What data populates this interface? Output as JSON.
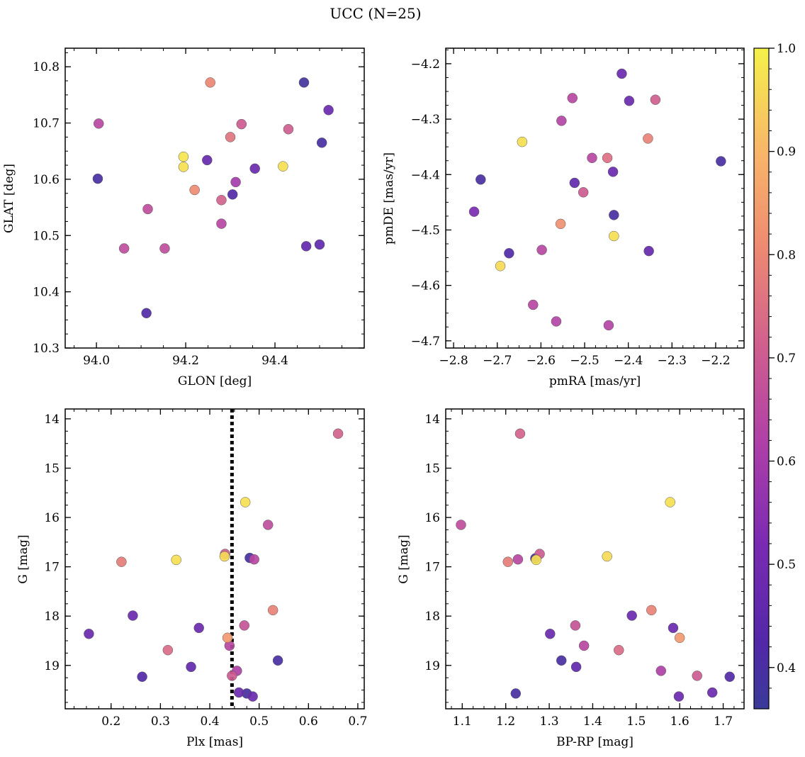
{
  "title": "UCC (N=25)",
  "colorbar": {
    "min": 0.36,
    "max": 1.0,
    "ticks": [
      0.4,
      0.5,
      0.6,
      0.7,
      0.8,
      0.9,
      1.0
    ],
    "tick_labels": [
      "0.4",
      "0.5",
      "0.6",
      "0.7",
      "0.8",
      "0.9",
      "1.0"
    ],
    "colormap": "plasma",
    "colors": [
      "#3a3a98",
      "#6a2cb0",
      "#a23db8",
      "#d05f8e",
      "#ee8a72",
      "#f9b868",
      "#f4f24a"
    ]
  },
  "chart_data": [
    {
      "id": "glon-glat",
      "type": "scatter",
      "title": "",
      "xlabel": "GLON [deg]",
      "ylabel": "GLAT [deg]",
      "xlim": [
        93.93,
        94.6
      ],
      "ylim": [
        10.3,
        10.833
      ],
      "xticks": [
        94.0,
        94.2,
        94.4
      ],
      "xtick_labels": [
        "94.0",
        "94.2",
        "94.4"
      ],
      "yticks": [
        10.3,
        10.4,
        10.5,
        10.6,
        10.7,
        10.8
      ],
      "ytick_labels": [
        "10.3",
        "10.4",
        "10.5",
        "10.6",
        "10.7",
        "10.8"
      ],
      "points": [
        {
          "x": 94.255,
          "y": 10.772,
          "p": 0.8
        },
        {
          "x": 94.465,
          "y": 10.772,
          "p": 0.38
        },
        {
          "x": 94.52,
          "y": 10.723,
          "p": 0.48
        },
        {
          "x": 94.005,
          "y": 10.699,
          "p": 0.64
        },
        {
          "x": 94.325,
          "y": 10.698,
          "p": 0.7
        },
        {
          "x": 94.43,
          "y": 10.689,
          "p": 0.71
        },
        {
          "x": 94.3,
          "y": 10.675,
          "p": 0.76
        },
        {
          "x": 94.505,
          "y": 10.665,
          "p": 0.4
        },
        {
          "x": 94.195,
          "y": 10.64,
          "p": 0.98
        },
        {
          "x": 94.248,
          "y": 10.634,
          "p": 0.47
        },
        {
          "x": 94.195,
          "y": 10.622,
          "p": 0.97
        },
        {
          "x": 94.418,
          "y": 10.623,
          "p": 0.97
        },
        {
          "x": 94.355,
          "y": 10.619,
          "p": 0.48
        },
        {
          "x": 94.003,
          "y": 10.601,
          "p": 0.4
        },
        {
          "x": 94.312,
          "y": 10.595,
          "p": 0.6
        },
        {
          "x": 94.22,
          "y": 10.581,
          "p": 0.81
        },
        {
          "x": 94.305,
          "y": 10.573,
          "p": 0.42
        },
        {
          "x": 94.28,
          "y": 10.563,
          "p": 0.72
        },
        {
          "x": 94.115,
          "y": 10.547,
          "p": 0.66
        },
        {
          "x": 94.28,
          "y": 10.521,
          "p": 0.64
        },
        {
          "x": 94.5,
          "y": 10.484,
          "p": 0.46
        },
        {
          "x": 94.47,
          "y": 10.481,
          "p": 0.46
        },
        {
          "x": 94.062,
          "y": 10.477,
          "p": 0.66
        },
        {
          "x": 94.153,
          "y": 10.477,
          "p": 0.66
        },
        {
          "x": 94.112,
          "y": 10.362,
          "p": 0.42
        }
      ]
    },
    {
      "id": "pmra-pmde",
      "type": "scatter",
      "title": "",
      "xlabel": "pmRA [mas/yr]",
      "ylabel": "pmDE [mas/yr]",
      "xlim": [
        -2.818,
        -2.135
      ],
      "ylim": [
        -4.713,
        -4.172
      ],
      "xticks": [
        -2.8,
        -2.7,
        -2.6,
        -2.5,
        -2.4,
        -2.3,
        -2.2
      ],
      "xtick_labels": [
        "−2.8",
        "−2.7",
        "−2.6",
        "−2.5",
        "−2.4",
        "−2.3",
        "−2.2"
      ],
      "yticks": [
        -4.7,
        -4.6,
        -4.5,
        -4.4,
        -4.3,
        -4.2
      ],
      "ytick_labels": [
        "−4.7",
        "−4.6",
        "−4.5",
        "−4.4",
        "−4.3",
        "−4.2"
      ],
      "points": [
        {
          "x": -2.415,
          "y": -4.218,
          "p": 0.48
        },
        {
          "x": -2.528,
          "y": -4.262,
          "p": 0.64
        },
        {
          "x": -2.398,
          "y": -4.267,
          "p": 0.48
        },
        {
          "x": -2.338,
          "y": -4.265,
          "p": 0.71
        },
        {
          "x": -2.553,
          "y": -4.303,
          "p": 0.63
        },
        {
          "x": -2.643,
          "y": -4.341,
          "p": 0.97
        },
        {
          "x": -2.355,
          "y": -4.335,
          "p": 0.79
        },
        {
          "x": -2.483,
          "y": -4.37,
          "p": 0.64
        },
        {
          "x": -2.448,
          "y": -4.37,
          "p": 0.75
        },
        {
          "x": -2.188,
          "y": -4.376,
          "p": 0.4
        },
        {
          "x": -2.435,
          "y": -4.395,
          "p": 0.48
        },
        {
          "x": -2.738,
          "y": -4.409,
          "p": 0.4
        },
        {
          "x": -2.523,
          "y": -4.415,
          "p": 0.46
        },
        {
          "x": -2.503,
          "y": -4.432,
          "p": 0.7
        },
        {
          "x": -2.753,
          "y": -4.467,
          "p": 0.52
        },
        {
          "x": -2.433,
          "y": -4.473,
          "p": 0.4
        },
        {
          "x": -2.555,
          "y": -4.489,
          "p": 0.82
        },
        {
          "x": -2.433,
          "y": -4.511,
          "p": 0.97
        },
        {
          "x": -2.353,
          "y": -4.538,
          "p": 0.47
        },
        {
          "x": -2.598,
          "y": -4.536,
          "p": 0.64
        },
        {
          "x": -2.673,
          "y": -4.542,
          "p": 0.42
        },
        {
          "x": -2.693,
          "y": -4.565,
          "p": 0.96
        },
        {
          "x": -2.618,
          "y": -4.635,
          "p": 0.64
        },
        {
          "x": -2.565,
          "y": -4.665,
          "p": 0.63
        },
        {
          "x": -2.445,
          "y": -4.672,
          "p": 0.63
        }
      ]
    },
    {
      "id": "plx-g",
      "type": "scatter",
      "title": "",
      "xlabel": "Plx [mas]",
      "ylabel": "G [mag]",
      "xlim": [
        0.107,
        0.713
      ],
      "ylim": [
        19.88,
        13.8
      ],
      "y_inverted": true,
      "xticks": [
        0.2,
        0.3,
        0.4,
        0.5,
        0.6,
        0.7
      ],
      "xtick_labels": [
        "0.2",
        "0.3",
        "0.4",
        "0.5",
        "0.6",
        "0.7"
      ],
      "yticks": [
        14,
        15,
        16,
        17,
        18,
        19
      ],
      "ytick_labels": [
        "14",
        "15",
        "16",
        "17",
        "18",
        "19"
      ],
      "vline": {
        "x": 0.445,
        "style": "dotted",
        "color": "#000000"
      },
      "points": [
        {
          "x": 0.66,
          "y": 14.3,
          "p": 0.72
        },
        {
          "x": 0.472,
          "y": 15.69,
          "p": 0.97
        },
        {
          "x": 0.518,
          "y": 16.15,
          "p": 0.66
        },
        {
          "x": 0.431,
          "y": 16.74,
          "p": 0.7
        },
        {
          "x": 0.43,
          "y": 16.79,
          "p": 0.96
        },
        {
          "x": 0.332,
          "y": 16.86,
          "p": 0.97
        },
        {
          "x": 0.481,
          "y": 16.82,
          "p": 0.4
        },
        {
          "x": 0.49,
          "y": 16.85,
          "p": 0.64
        },
        {
          "x": 0.221,
          "y": 16.9,
          "p": 0.78
        },
        {
          "x": 0.244,
          "y": 17.99,
          "p": 0.48
        },
        {
          "x": 0.528,
          "y": 17.88,
          "p": 0.79
        },
        {
          "x": 0.47,
          "y": 18.19,
          "p": 0.68
        },
        {
          "x": 0.378,
          "y": 18.24,
          "p": 0.48
        },
        {
          "x": 0.155,
          "y": 18.36,
          "p": 0.48
        },
        {
          "x": 0.436,
          "y": 18.44,
          "p": 0.84
        },
        {
          "x": 0.44,
          "y": 18.6,
          "p": 0.64
        },
        {
          "x": 0.315,
          "y": 18.69,
          "p": 0.74
        },
        {
          "x": 0.538,
          "y": 18.9,
          "p": 0.4
        },
        {
          "x": 0.362,
          "y": 19.03,
          "p": 0.46
        },
        {
          "x": 0.455,
          "y": 19.11,
          "p": 0.62
        },
        {
          "x": 0.445,
          "y": 19.21,
          "p": 0.7
        },
        {
          "x": 0.263,
          "y": 19.23,
          "p": 0.42
        },
        {
          "x": 0.459,
          "y": 19.55,
          "p": 0.48
        },
        {
          "x": 0.475,
          "y": 19.57,
          "p": 0.4
        },
        {
          "x": 0.487,
          "y": 19.63,
          "p": 0.48
        }
      ]
    },
    {
      "id": "bprp-g",
      "type": "scatter",
      "title": "",
      "xlabel": "BP-RP [mag]",
      "ylabel": "G [mag]",
      "xlim": [
        1.062,
        1.748
      ],
      "ylim": [
        19.88,
        13.8
      ],
      "y_inverted": true,
      "xticks": [
        1.1,
        1.2,
        1.3,
        1.4,
        1.5,
        1.6,
        1.7
      ],
      "xtick_labels": [
        "1.1",
        "1.2",
        "1.3",
        "1.4",
        "1.5",
        "1.6",
        "1.7"
      ],
      "yticks": [
        14,
        15,
        16,
        17,
        18,
        19
      ],
      "ytick_labels": [
        "14",
        "15",
        "16",
        "17",
        "18",
        "19"
      ],
      "points": [
        {
          "x": 1.233,
          "y": 14.3,
          "p": 0.72
        },
        {
          "x": 1.578,
          "y": 15.69,
          "p": 0.97
        },
        {
          "x": 1.097,
          "y": 16.15,
          "p": 0.66
        },
        {
          "x": 1.278,
          "y": 16.74,
          "p": 0.7
        },
        {
          "x": 1.433,
          "y": 16.79,
          "p": 0.96
        },
        {
          "x": 1.268,
          "y": 16.83,
          "p": 0.4
        },
        {
          "x": 1.228,
          "y": 16.85,
          "p": 0.64
        },
        {
          "x": 1.27,
          "y": 16.86,
          "p": 0.97
        },
        {
          "x": 1.205,
          "y": 16.9,
          "p": 0.78
        },
        {
          "x": 1.535,
          "y": 17.88,
          "p": 0.79
        },
        {
          "x": 1.49,
          "y": 17.99,
          "p": 0.48
        },
        {
          "x": 1.36,
          "y": 18.19,
          "p": 0.68
        },
        {
          "x": 1.585,
          "y": 18.24,
          "p": 0.48
        },
        {
          "x": 1.302,
          "y": 18.36,
          "p": 0.48
        },
        {
          "x": 1.6,
          "y": 18.44,
          "p": 0.84
        },
        {
          "x": 1.38,
          "y": 18.6,
          "p": 0.64
        },
        {
          "x": 1.46,
          "y": 18.69,
          "p": 0.74
        },
        {
          "x": 1.328,
          "y": 18.9,
          "p": 0.4
        },
        {
          "x": 1.362,
          "y": 19.03,
          "p": 0.46
        },
        {
          "x": 1.557,
          "y": 19.11,
          "p": 0.62
        },
        {
          "x": 1.64,
          "y": 19.21,
          "p": 0.7
        },
        {
          "x": 1.715,
          "y": 19.23,
          "p": 0.42
        },
        {
          "x": 1.675,
          "y": 19.55,
          "p": 0.48
        },
        {
          "x": 1.223,
          "y": 19.57,
          "p": 0.4
        },
        {
          "x": 1.598,
          "y": 19.63,
          "p": 0.48
        }
      ]
    }
  ]
}
